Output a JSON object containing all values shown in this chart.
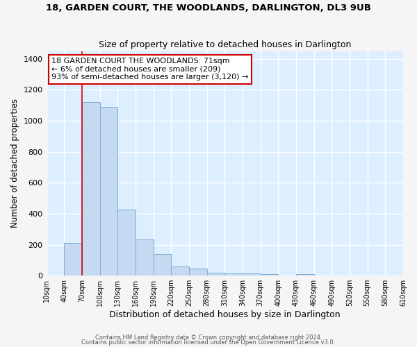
{
  "title": "18, GARDEN COURT, THE WOODLANDS, DARLINGTON, DL3 9UB",
  "subtitle": "Size of property relative to detached houses in Darlington",
  "xlabel": "Distribution of detached houses by size in Darlington",
  "ylabel": "Number of detached properties",
  "bin_edges": [
    10,
    40,
    70,
    100,
    130,
    160,
    190,
    220,
    250,
    280,
    310,
    340,
    370,
    400,
    430,
    460,
    490,
    520,
    550,
    580,
    610
  ],
  "bar_heights": [
    0,
    210,
    1120,
    1090,
    425,
    235,
    140,
    60,
    45,
    20,
    15,
    15,
    10,
    0,
    10,
    0,
    0,
    0,
    0,
    0
  ],
  "bar_color": "#c5d9f0",
  "bar_edge_color": "#7aadda",
  "tick_labels": [
    "10sqm",
    "40sqm",
    "70sqm",
    "100sqm",
    "130sqm",
    "160sqm",
    "190sqm",
    "220sqm",
    "250sqm",
    "280sqm",
    "310sqm",
    "340sqm",
    "370sqm",
    "400sqm",
    "430sqm",
    "460sqm",
    "490sqm",
    "520sqm",
    "550sqm",
    "580sqm",
    "610sqm"
  ],
  "ylim": [
    0,
    1450
  ],
  "yticks": [
    0,
    200,
    400,
    600,
    800,
    1000,
    1200,
    1400
  ],
  "red_line_x": 70,
  "annotation_text": "18 GARDEN COURT THE WOODLANDS: 71sqm\n← 6% of detached houses are smaller (209)\n93% of semi-detached houses are larger (3,120) →",
  "annotation_box_color": "#ffffff",
  "annotation_box_edge_color": "#cc0000",
  "fig_bg_color": "#f5f5f5",
  "plot_bg_color": "#ddeeff",
  "grid_color": "#ffffff",
  "footer_line1": "Contains HM Land Registry data © Crown copyright and database right 2024.",
  "footer_line2": "Contains public sector information licensed under the Open Government Licence v3.0."
}
